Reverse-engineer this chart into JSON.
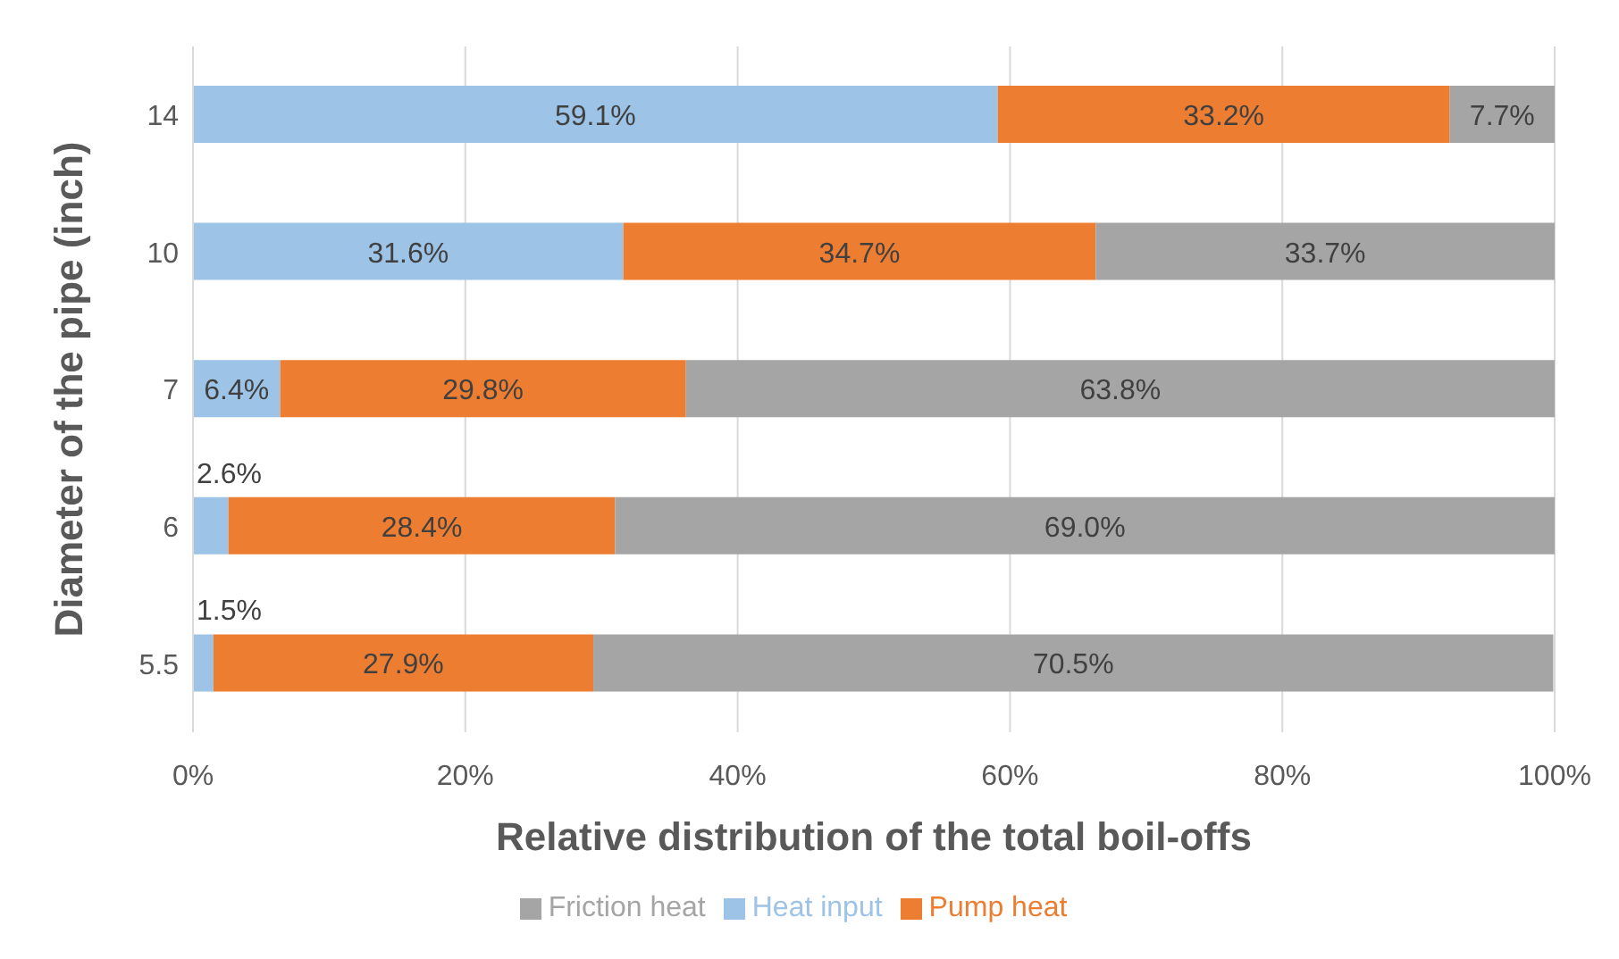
{
  "chart_data": {
    "type": "bar",
    "orientation": "horizontal",
    "stacked": true,
    "categories": [
      "14",
      "10",
      "7",
      "6",
      "5.5"
    ],
    "xlabel": "Relative distribution of the total boil-offs",
    "ylabel": "Diameter of the pipe (inch)",
    "xlim": [
      0,
      100
    ],
    "xticks": [
      {
        "value": 0,
        "label": "0%"
      },
      {
        "value": 20,
        "label": "20%"
      },
      {
        "value": 40,
        "label": "40%"
      },
      {
        "value": 60,
        "label": "60%"
      },
      {
        "value": 80,
        "label": "80%"
      },
      {
        "value": 100,
        "label": "100%"
      }
    ],
    "grid": "x",
    "legend": "bottom",
    "series": [
      {
        "name": "Heat input",
        "color": "#9dc3e6",
        "values": [
          59.1,
          31.6,
          6.4,
          2.6,
          1.5
        ],
        "value_labels": [
          "59.1%",
          "31.6%",
          "6.4%",
          "2.6%",
          "1.5%"
        ]
      },
      {
        "name": "Pump heat",
        "color": "#ed7d31",
        "values": [
          33.2,
          34.7,
          29.8,
          28.4,
          27.9
        ],
        "value_labels": [
          "33.2%",
          "34.7%",
          "29.8%",
          "28.4%",
          "27.9%"
        ]
      },
      {
        "name": "Friction heat",
        "color": "#a5a5a5",
        "values": [
          7.7,
          33.7,
          63.8,
          69.0,
          70.5
        ],
        "value_labels": [
          "7.7%",
          "33.7%",
          "63.8%",
          "69.0%",
          "70.5%"
        ]
      }
    ]
  }
}
